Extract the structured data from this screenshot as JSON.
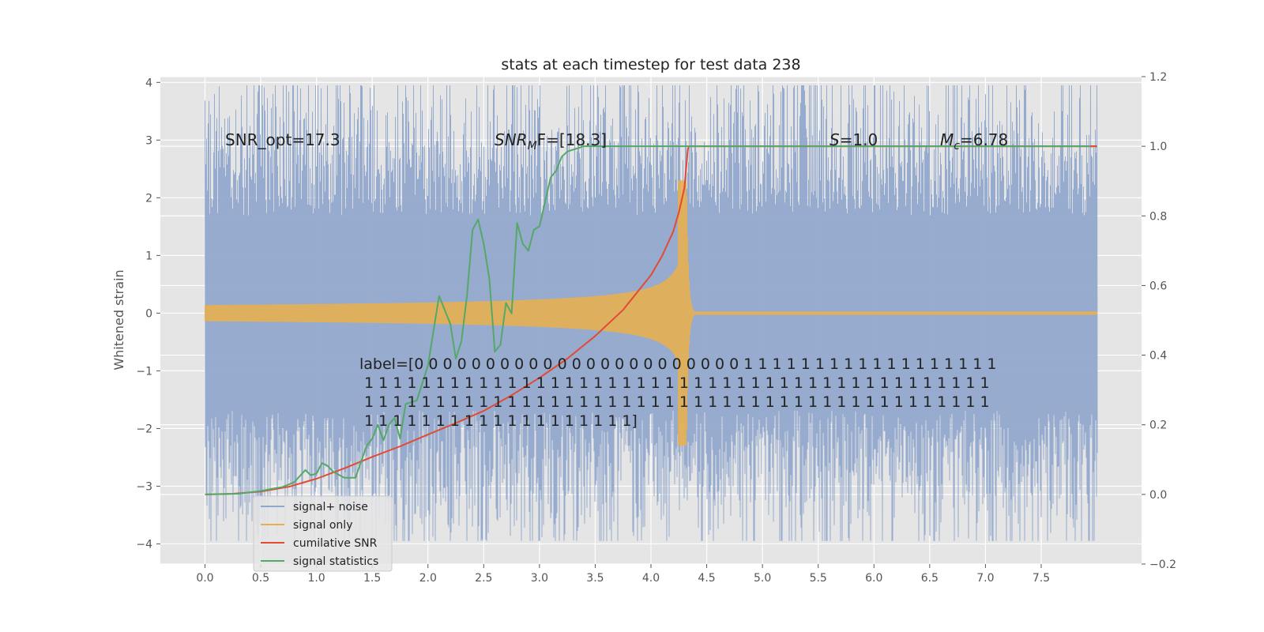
{
  "chart_data": {
    "type": "line",
    "title": "stats at each timestep for test data 238",
    "ylabel": "Whitened strain",
    "xlabel": "",
    "xlim": [
      -0.4,
      8.4
    ],
    "ylim": [
      -4.35,
      4.1
    ],
    "y2lim": [
      -0.2,
      1.2
    ],
    "x_ticks": [
      "0.0",
      "0.5",
      "1.0",
      "1.5",
      "2.0",
      "2.5",
      "3.0",
      "3.5",
      "4.0",
      "4.5",
      "5.0",
      "5.5",
      "6.0",
      "6.5",
      "7.0",
      "7.5"
    ],
    "y_ticks": [
      "−4",
      "−3",
      "−2",
      "−1",
      "0",
      "1",
      "2",
      "3",
      "4"
    ],
    "y2_ticks": [
      "−0.2",
      "0.0",
      "0.2",
      "0.4",
      "0.6",
      "0.8",
      "1.0",
      "1.2"
    ],
    "grid": true,
    "legend_position": "lower-left",
    "annotations": {
      "snr_opt": "SNR_opt=17.3",
      "snr_mf_main": "SNR",
      "snr_mf_sub": "M",
      "snr_mf_rest": "F=[18.3]",
      "s_var": "S",
      "s_val": "=1.0",
      "mc_var": "M",
      "mc_sub": "c",
      "mc_val": "=6.78",
      "label_lines": [
        "label=[0 0 0 0 0 0 0 0 0 0 0 0 0 0 0 0 0 0 0 0 0 0 0 1 1 1 1 1 1 1 1 1 1 1 1 1 1 1 1 1 1",
        " 1 1 1 1 1 1 1 1 1 1 1 1 1 1 1 1 1 1 1 1 1 1 1 1 1 1 1 1 1 1 1 1 1 1 1 1 1 1 1 1 1 1 1 1",
        " 1 1 1 1 1 1 1 1 1 1 1 1 1 1 1 1 1 1 1 1 1 1 1 1 1 1 1 1 1 1 1 1 1 1 1 1 1 1 1 1 1 1 1 1",
        " 1 1 1 1 1 1 1 1 1 1 1 1 1 1 1 1 1 1 1]"
      ]
    },
    "series": [
      {
        "name": "signal+ noise",
        "color": "#91a8cc",
        "axis": "left",
        "x_range": [
          0.0,
          8.0
        ],
        "amplitude": 1.3
      },
      {
        "name": "signal only",
        "color": "#e6b052",
        "axis": "left",
        "x_range": [
          0.0,
          8.0
        ],
        "merger_x": 4.32,
        "peak_amplitude": 2.3
      },
      {
        "name": "cumilative SNR",
        "color": "#e24a33",
        "axis": "right",
        "x": [
          0.0,
          0.25,
          0.5,
          0.75,
          1.0,
          1.25,
          1.5,
          1.75,
          2.0,
          2.25,
          2.5,
          2.75,
          3.0,
          3.25,
          3.5,
          3.75,
          4.0,
          4.1,
          4.2,
          4.25,
          4.3,
          4.33,
          4.34,
          8.0
        ],
        "y": [
          0.0,
          0.002,
          0.008,
          0.022,
          0.045,
          0.075,
          0.108,
          0.138,
          0.172,
          0.205,
          0.24,
          0.285,
          0.335,
          0.39,
          0.455,
          0.53,
          0.63,
          0.685,
          0.755,
          0.81,
          0.88,
          0.99,
          1.0,
          1.0
        ]
      },
      {
        "name": "signal statistics",
        "color": "#55a868",
        "axis": "right",
        "x": [
          0.0,
          0.3,
          0.5,
          0.7,
          0.8,
          0.9,
          0.95,
          1.0,
          1.05,
          1.1,
          1.15,
          1.25,
          1.35,
          1.45,
          1.5,
          1.55,
          1.6,
          1.65,
          1.7,
          1.75,
          1.8,
          1.9,
          2.0,
          2.1,
          2.2,
          2.25,
          2.3,
          2.35,
          2.4,
          2.45,
          2.5,
          2.55,
          2.6,
          2.65,
          2.7,
          2.75,
          2.8,
          2.85,
          2.9,
          2.95,
          3.0,
          3.05,
          3.1,
          3.15,
          3.2,
          3.25,
          3.3,
          3.35,
          3.4,
          3.5,
          3.6,
          8.0
        ],
        "y": [
          0.0,
          0.002,
          0.01,
          0.022,
          0.035,
          0.07,
          0.055,
          0.06,
          0.09,
          0.082,
          0.065,
          0.048,
          0.048,
          0.14,
          0.16,
          0.2,
          0.155,
          0.2,
          0.22,
          0.16,
          0.26,
          0.27,
          0.37,
          0.57,
          0.49,
          0.39,
          0.44,
          0.57,
          0.76,
          0.79,
          0.72,
          0.62,
          0.41,
          0.43,
          0.55,
          0.52,
          0.78,
          0.72,
          0.7,
          0.76,
          0.77,
          0.84,
          0.91,
          0.93,
          0.97,
          0.985,
          0.99,
          0.995,
          1.0,
          1.0,
          1.0,
          1.0
        ]
      }
    ]
  }
}
